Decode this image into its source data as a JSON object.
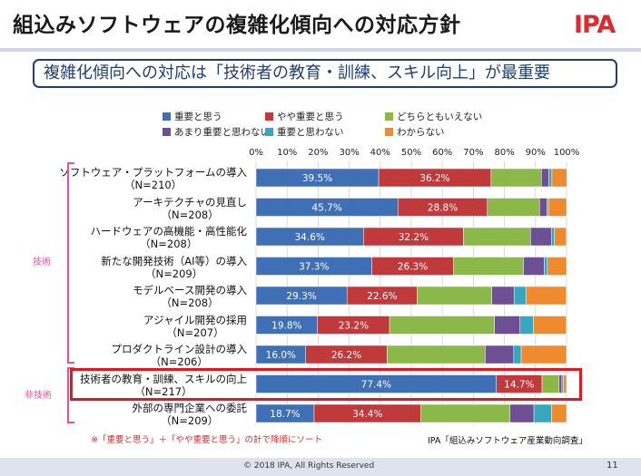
{
  "slide": {
    "title": "組込みソフトウェアの複雑化傾向への対応方針",
    "logo": "IPA",
    "subtitle": "複雑化傾向への対応は「技術者の教育・訓練、スキル向上」が最重要",
    "note": "※「重要と思う」＋「やや重要と思う」の計で降順にソート",
    "source": "IPA「組込みソフトウェア産業動向調査」",
    "copyright": "© 2018 IPA, All Rights Reserved",
    "page_number": "11",
    "groups": {
      "tech": "技術",
      "nontech": "非技術"
    }
  },
  "colors": {
    "重要と思う": "#3f6fb5",
    "やや重要と思う": "#c0393b",
    "どちらともいえない": "#8cb84a",
    "あまり重要と思わない": "#6e4f93",
    "重要と思わない": "#36a6c1",
    "わからない": "#f08a2f",
    "highlight": "#e8141e",
    "bracket": "#e94f9c"
  },
  "chart_data": {
    "type": "bar",
    "orientation": "horizontal",
    "stacked": true,
    "xlim": [
      0,
      100
    ],
    "x_ticks": [
      "0%",
      "10%",
      "20%",
      "30%",
      "40%",
      "50%",
      "60%",
      "70%",
      "80%",
      "90%",
      "100%"
    ],
    "legend_placement": "top",
    "categories": [
      {
        "label": "ソフトウェア・プラットフォームの導入",
        "n": "（N=210）",
        "group": "技術"
      },
      {
        "label": "アーキテクチャの見直し",
        "n": "（N=208）",
        "group": "技術"
      },
      {
        "label": "ハードウェアの高機能・高性能化",
        "n": "（N=208）",
        "group": "技術"
      },
      {
        "label": "新たな開発技術（AI等）の導入",
        "n": "（N=209）",
        "group": "技術"
      },
      {
        "label": "モデルベース開発の導入",
        "n": "（N=208）",
        "group": "技術"
      },
      {
        "label": "アジャイル開発の採用",
        "n": "（N=207）",
        "group": "技術"
      },
      {
        "label": "プロダクトライン設計の導入",
        "n": "（N=206）",
        "group": "技術"
      },
      {
        "label": "技術者の教育・訓練、スキルの向上",
        "n": "（N=217）",
        "group": "非技術"
      },
      {
        "label": "外部の専門企業への委託",
        "n": "（N=209）",
        "group": "非技術"
      }
    ],
    "series": [
      {
        "name": "重要と思う",
        "values": [
          39.5,
          45.7,
          34.6,
          37.3,
          29.3,
          19.8,
          16.0,
          77.4,
          18.7
        ]
      },
      {
        "name": "やや重要と思う",
        "values": [
          36.2,
          28.8,
          32.2,
          26.3,
          22.6,
          23.2,
          26.2,
          14.7,
          34.4
        ]
      },
      {
        "name": "どちらともいえない",
        "values": [
          16.2,
          16.8,
          21.6,
          22.5,
          24.0,
          33.8,
          31.6,
          5.5,
          28.7
        ]
      },
      {
        "name": "あまり重要と思わない",
        "values": [
          2.4,
          2.4,
          6.7,
          6.7,
          7.2,
          8.2,
          9.2,
          0.9,
          7.7
        ]
      },
      {
        "name": "重要と思わない",
        "values": [
          1.0,
          0.5,
          1.0,
          1.0,
          3.8,
          4.3,
          2.4,
          0.5,
          5.7
        ]
      },
      {
        "name": "わからない",
        "values": [
          4.8,
          5.8,
          3.8,
          6.2,
          13.0,
          10.6,
          14.6,
          1.0,
          4.8
        ]
      }
    ],
    "labeled_series": [
      "重要と思う",
      "やや重要と思う"
    ],
    "highlighted_category": "技術者の教育・訓練、スキルの向上"
  }
}
